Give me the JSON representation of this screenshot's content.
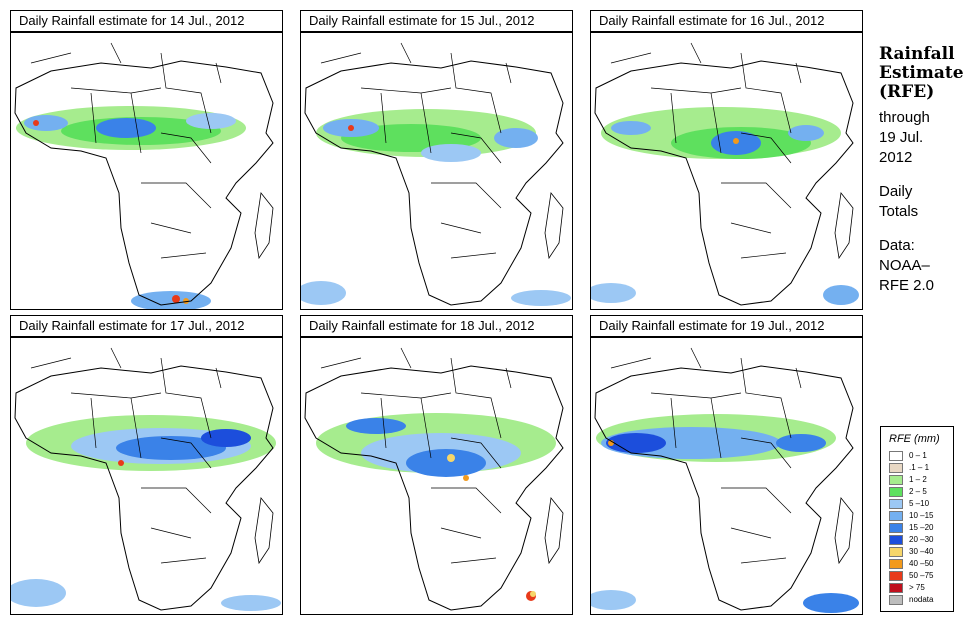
{
  "panels": [
    {
      "title": "Daily Rainfall estimate for  14 Jul., 2012"
    },
    {
      "title": "Daily Rainfall estimate for  15 Jul., 2012"
    },
    {
      "title": "Daily Rainfall estimate for  16 Jul., 2012"
    },
    {
      "title": "Daily Rainfall estimate for  17 Jul., 2012"
    },
    {
      "title": "Daily Rainfall estimate for  18 Jul., 2012"
    },
    {
      "title": "Daily Rainfall estimate for  19 Jul., 2012"
    }
  ],
  "side": {
    "title_line1": "Rainfall",
    "title_line2": "Estimate",
    "title_line3": "(RFE)",
    "through": "through",
    "date_line1": "19 Jul.",
    "date_line2": "2012",
    "daily": "Daily",
    "totals": "Totals",
    "data_label": "Data:",
    "source_line1": "NOAA–",
    "source_line2": "RFE 2.0"
  },
  "legend": {
    "title": "RFE (mm)",
    "items": [
      {
        "label": "0 – 1",
        "color": "#ffffff"
      },
      {
        "label": ".1 – 1",
        "color": "#e8d8c4"
      },
      {
        "label": "1 – 2",
        "color": "#a6ec8e"
      },
      {
        "label": "2 – 5",
        "color": "#5ee05e"
      },
      {
        "label": "5 –10",
        "color": "#9cc8f4"
      },
      {
        "label": "10 –15",
        "color": "#74b0f0"
      },
      {
        "label": "15 –20",
        "color": "#3a82e8"
      },
      {
        "label": "20 –30",
        "color": "#1c4edc"
      },
      {
        "label": "30 –40",
        "color": "#f6d66a"
      },
      {
        "label": "40 –50",
        "color": "#f29a1c"
      },
      {
        "label": "50 –75",
        "color": "#e83a1a"
      },
      {
        "label": "> 75",
        "color": "#c0101e"
      },
      {
        "label": "nodata",
        "color": "#bdbdbd"
      }
    ]
  }
}
